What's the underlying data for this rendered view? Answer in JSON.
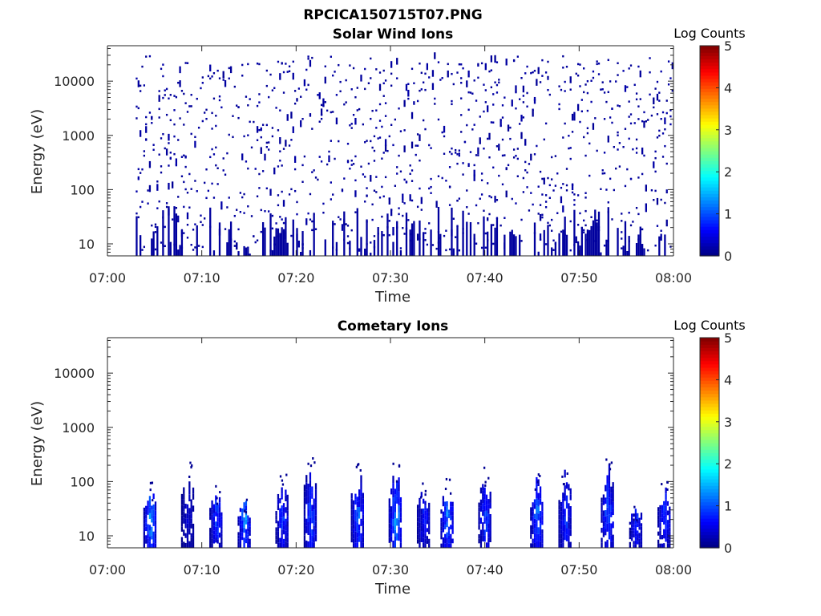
{
  "figure_title": "RPCICA150715T07.PNG",
  "chart_data": [
    {
      "type": "heatmap",
      "title": "Solar Wind Ions",
      "xlabel": "Time",
      "ylabel": "Energy (eV)",
      "y_scale": "log",
      "ylim": [
        6,
        45000
      ],
      "xlim": [
        "07:00",
        "08:00"
      ],
      "x_ticks": [
        "07:00",
        "07:10",
        "07:20",
        "07:30",
        "07:40",
        "07:50",
        "08:00"
      ],
      "y_ticks": [
        "10",
        "100",
        "1000",
        "10000"
      ],
      "colorbar": {
        "label": "Log Counts",
        "min": 0,
        "max": 5,
        "ticks": [
          "0",
          "1",
          "2",
          "3",
          "4",
          "5"
        ],
        "colormap": "jet"
      },
      "data_start": "07:03",
      "data_end": "08:00",
      "description_of_values": "sparse single counts (log count ~0) scattered from ~10 eV to ~30000 eV",
      "peak_log_counts": 0.1
    },
    {
      "type": "heatmap",
      "title": "Cometary Ions",
      "xlabel": "Time",
      "ylabel": "Energy (eV)",
      "y_scale": "log",
      "ylim": [
        6,
        45000
      ],
      "xlim": [
        "07:00",
        "08:00"
      ],
      "x_ticks": [
        "07:00",
        "07:10",
        "07:20",
        "07:30",
        "07:40",
        "07:50",
        "08:00"
      ],
      "y_ticks": [
        "10",
        "100",
        "1000",
        "10000"
      ],
      "colorbar": {
        "label": "Log Counts",
        "min": 0,
        "max": 5,
        "ticks": [
          "0",
          "1",
          "2",
          "3",
          "4",
          "5"
        ],
        "colormap": "jet"
      },
      "bursts": [
        {
          "time": "07:04.5",
          "e_min": 6,
          "e_max": 100,
          "peak_log_counts": 1.9
        },
        {
          "time": "07:08.5",
          "e_min": 6,
          "e_max": 240,
          "peak_log_counts": 0.6
        },
        {
          "time": "07:11.5",
          "e_min": 6,
          "e_max": 90,
          "peak_log_counts": 1.3
        },
        {
          "time": "07:14.5",
          "e_min": 6,
          "e_max": 60,
          "peak_log_counts": 1.7
        },
        {
          "time": "07:18.5",
          "e_min": 6,
          "e_max": 140,
          "peak_log_counts": 1.2
        },
        {
          "time": "07:21.5",
          "e_min": 6,
          "e_max": 380,
          "peak_log_counts": 1.4
        },
        {
          "time": "07:26.5",
          "e_min": 6,
          "e_max": 230,
          "peak_log_counts": 1.5
        },
        {
          "time": "07:30.5",
          "e_min": 6,
          "e_max": 230,
          "peak_log_counts": 1.9
        },
        {
          "time": "07:33.5",
          "e_min": 6,
          "e_max": 120,
          "peak_log_counts": 1.0
        },
        {
          "time": "07:36",
          "e_min": 6,
          "e_max": 120,
          "peak_log_counts": 1.7
        },
        {
          "time": "07:40",
          "e_min": 6,
          "e_max": 190,
          "peak_log_counts": 1.3
        },
        {
          "time": "07:45.5",
          "e_min": 6,
          "e_max": 160,
          "peak_log_counts": 1.6
        },
        {
          "time": "07:48.5",
          "e_min": 6,
          "e_max": 200,
          "peak_log_counts": 1.2
        },
        {
          "time": "07:53",
          "e_min": 6,
          "e_max": 270,
          "peak_log_counts": 1.6
        },
        {
          "time": "07:56",
          "e_min": 6,
          "e_max": 45,
          "peak_log_counts": 1.1
        },
        {
          "time": "07:59",
          "e_min": 6,
          "e_max": 110,
          "peak_log_counts": 1.2
        }
      ]
    }
  ]
}
